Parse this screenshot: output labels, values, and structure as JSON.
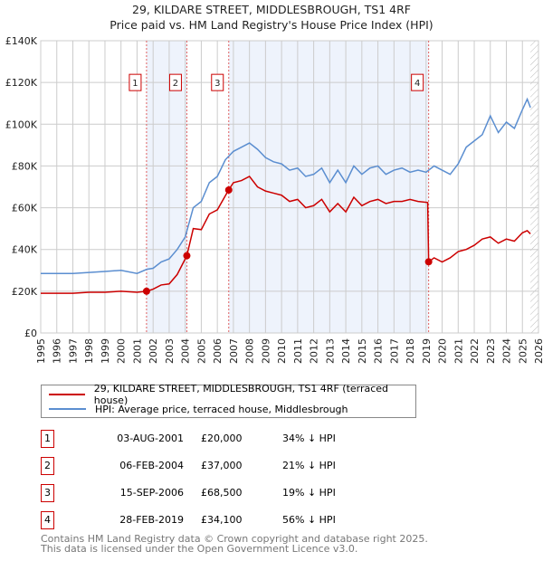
{
  "title": "29, KILDARE STREET, MIDDLESBROUGH, TS1 4RF",
  "subtitle": "Price paid vs. HM Land Registry's House Price Index (HPI)",
  "chart_data": {
    "type": "line",
    "xlim": [
      1995,
      2026
    ],
    "ylim": [
      0,
      140000
    ],
    "x_ticks": [
      "1995",
      "1996",
      "1997",
      "1998",
      "1999",
      "2000",
      "2001",
      "2002",
      "2003",
      "2004",
      "2005",
      "2006",
      "2007",
      "2008",
      "2009",
      "2010",
      "2011",
      "2012",
      "2013",
      "2014",
      "2015",
      "2016",
      "2017",
      "2018",
      "2019",
      "2020",
      "2021",
      "2022",
      "2023",
      "2024",
      "2025",
      "2026"
    ],
    "y_ticks": [
      {
        "v": 0,
        "label": "£0"
      },
      {
        "v": 20000,
        "label": "£20K"
      },
      {
        "v": 40000,
        "label": "£40K"
      },
      {
        "v": 60000,
        "label": "£60K"
      },
      {
        "v": 80000,
        "label": "£80K"
      },
      {
        "v": 100000,
        "label": "£100K"
      },
      {
        "v": 120000,
        "label": "£120K"
      },
      {
        "v": 140000,
        "label": "£140K"
      }
    ],
    "series": [
      {
        "name": "29, KILDARE STREET, MIDDLESBROUGH, TS1 4RF (terraced house)",
        "color": "#cc0000",
        "points": [
          [
            1995,
            19000
          ],
          [
            1996,
            19000
          ],
          [
            1997,
            19000
          ],
          [
            1998,
            19500
          ],
          [
            1999,
            19500
          ],
          [
            2000,
            20000
          ],
          [
            2001,
            19500
          ],
          [
            2001.6,
            20000
          ],
          [
            2002,
            21000
          ],
          [
            2002.5,
            23000
          ],
          [
            2003,
            23500
          ],
          [
            2003.5,
            28000
          ],
          [
            2004.1,
            37000
          ],
          [
            2004.5,
            50000
          ],
          [
            2005,
            49500
          ],
          [
            2005.5,
            57000
          ],
          [
            2006,
            59000
          ],
          [
            2006.7,
            68500
          ],
          [
            2007,
            72000
          ],
          [
            2007.5,
            73000
          ],
          [
            2008,
            75000
          ],
          [
            2008.5,
            70000
          ],
          [
            2009,
            68000
          ],
          [
            2009.5,
            67000
          ],
          [
            2010,
            66000
          ],
          [
            2010.5,
            63000
          ],
          [
            2011,
            64000
          ],
          [
            2011.5,
            60000
          ],
          [
            2012,
            61000
          ],
          [
            2012.5,
            64000
          ],
          [
            2013,
            58000
          ],
          [
            2013.5,
            62000
          ],
          [
            2014,
            58000
          ],
          [
            2014.5,
            65000
          ],
          [
            2015,
            61000
          ],
          [
            2015.5,
            63000
          ],
          [
            2016,
            64000
          ],
          [
            2016.5,
            62000
          ],
          [
            2017,
            63000
          ],
          [
            2017.5,
            63000
          ],
          [
            2018,
            64000
          ],
          [
            2018.5,
            63000
          ],
          [
            2019.1,
            62500
          ],
          [
            2019.16,
            34100
          ],
          [
            2019.5,
            36000
          ],
          [
            2020,
            34000
          ],
          [
            2020.5,
            36000
          ],
          [
            2021,
            39000
          ],
          [
            2021.5,
            40000
          ],
          [
            2022,
            42000
          ],
          [
            2022.5,
            45000
          ],
          [
            2023,
            46000
          ],
          [
            2023.5,
            43000
          ],
          [
            2024,
            45000
          ],
          [
            2024.5,
            44000
          ],
          [
            2025,
            48000
          ],
          [
            2025.3,
            49000
          ],
          [
            2025.5,
            47500
          ]
        ]
      },
      {
        "name": "HPI: Average price, terraced house, Middlesbrough",
        "color": "#5b8ed0",
        "points": [
          [
            1995,
            28500
          ],
          [
            1996,
            28500
          ],
          [
            1997,
            28500
          ],
          [
            1998,
            29000
          ],
          [
            1999,
            29500
          ],
          [
            2000,
            30000
          ],
          [
            2001,
            28500
          ],
          [
            2001.6,
            30500
          ],
          [
            2002,
            31000
          ],
          [
            2002.5,
            34000
          ],
          [
            2003,
            35500
          ],
          [
            2003.5,
            40000
          ],
          [
            2004,
            46000
          ],
          [
            2004.5,
            60000
          ],
          [
            2005,
            63000
          ],
          [
            2005.5,
            72000
          ],
          [
            2006,
            75000
          ],
          [
            2006.5,
            83000
          ],
          [
            2007,
            87000
          ],
          [
            2007.5,
            89000
          ],
          [
            2008,
            91000
          ],
          [
            2008.5,
            88000
          ],
          [
            2009,
            84000
          ],
          [
            2009.5,
            82000
          ],
          [
            2010,
            81000
          ],
          [
            2010.5,
            78000
          ],
          [
            2011,
            79000
          ],
          [
            2011.5,
            75000
          ],
          [
            2012,
            76000
          ],
          [
            2012.5,
            79000
          ],
          [
            2013,
            72000
          ],
          [
            2013.5,
            78000
          ],
          [
            2014,
            72000
          ],
          [
            2014.5,
            80000
          ],
          [
            2015,
            76000
          ],
          [
            2015.5,
            79000
          ],
          [
            2016,
            80000
          ],
          [
            2016.5,
            76000
          ],
          [
            2017,
            78000
          ],
          [
            2017.5,
            79000
          ],
          [
            2018,
            77000
          ],
          [
            2018.5,
            78000
          ],
          [
            2019,
            77000
          ],
          [
            2019.5,
            80000
          ],
          [
            2020,
            78000
          ],
          [
            2020.5,
            76000
          ],
          [
            2021,
            81000
          ],
          [
            2021.5,
            89000
          ],
          [
            2022,
            92000
          ],
          [
            2022.5,
            95000
          ],
          [
            2023,
            104000
          ],
          [
            2023.5,
            96000
          ],
          [
            2024,
            101000
          ],
          [
            2024.5,
            98000
          ],
          [
            2025,
            107000
          ],
          [
            2025.3,
            112000
          ],
          [
            2025.5,
            108000
          ]
        ]
      }
    ],
    "sales": [
      {
        "label": "1",
        "x": 2001.59,
        "price": 20000,
        "date": "03-AUG-2001",
        "price_text": "£20,000",
        "hpi": "34% ↓ HPI"
      },
      {
        "label": "2",
        "x": 2004.1,
        "price": 37000,
        "date": "06-FEB-2004",
        "price_text": "£37,000",
        "hpi": "21% ↓ HPI"
      },
      {
        "label": "3",
        "x": 2006.71,
        "price": 68500,
        "date": "15-SEP-2006",
        "price_text": "£68,500",
        "hpi": "19% ↓ HPI"
      },
      {
        "label": "4",
        "x": 2019.16,
        "price": 34100,
        "date": "28-FEB-2019",
        "price_text": "£34,100",
        "hpi": "56% ↓ HPI"
      }
    ],
    "shaded_ranges": [
      [
        2001.59,
        2004.1
      ],
      [
        2006.71,
        2019.16
      ]
    ],
    "forecast_hatch_from": 2025.5
  },
  "footer": [
    "Contains HM Land Registry data © Crown copyright and database right 2025.",
    "This data is licensed under the Open Government Licence v3.0."
  ]
}
